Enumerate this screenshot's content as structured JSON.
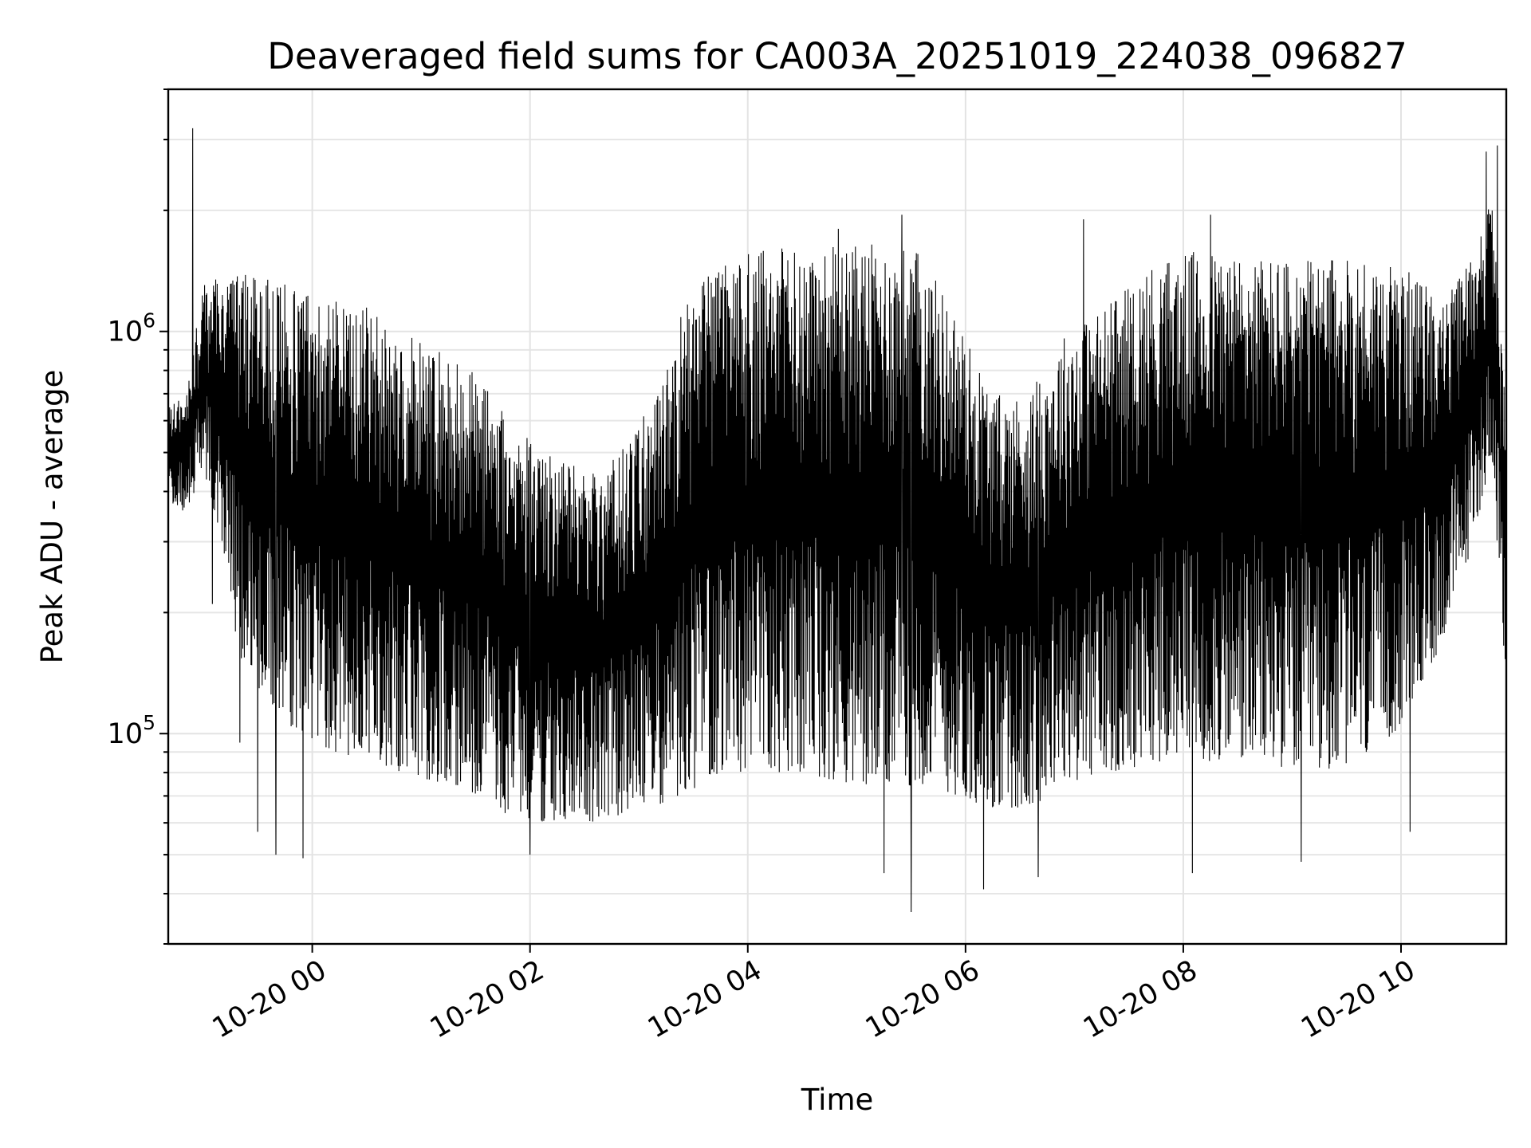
{
  "chart_data": {
    "type": "line",
    "title": "Deaveraged field sums for CA003A_20251019_224038_096827",
    "xlabel": "Time",
    "ylabel": "Peak ADU - average",
    "yscale": "log",
    "xlim": [
      "2025-10-19T22:40:38",
      "2025-10-20T10:58:00"
    ],
    "ylim": [
      30000,
      4000000
    ],
    "grid": "on",
    "x_ticks": [
      {
        "value": "2025-10-20T00:00:00",
        "label": "10-20 00"
      },
      {
        "value": "2025-10-20T02:00:00",
        "label": "10-20 02"
      },
      {
        "value": "2025-10-20T04:00:00",
        "label": "10-20 04"
      },
      {
        "value": "2025-10-20T06:00:00",
        "label": "10-20 06"
      },
      {
        "value": "2025-10-20T08:00:00",
        "label": "10-20 08"
      },
      {
        "value": "2025-10-20T10:00:00",
        "label": "10-20 10"
      }
    ],
    "y_ticks": [
      {
        "value": 100000,
        "base": "10",
        "exp": "5"
      },
      {
        "value": 1000000,
        "base": "10",
        "exp": "6"
      }
    ],
    "series": [
      {
        "color": "#000000",
        "envelope": [
          {
            "x": "2025-10-19T22:41:00",
            "low": 380000,
            "high": 650000
          },
          {
            "x": "2025-10-19T22:50:00",
            "low": 350000,
            "high": 700000
          },
          {
            "x": "2025-10-19T23:00:00",
            "low": 450000,
            "high": 1300000
          },
          {
            "x": "2025-10-19T23:10:00",
            "low": 300000,
            "high": 1400000
          },
          {
            "x": "2025-10-19T23:20:00",
            "low": 150000,
            "high": 1400000
          },
          {
            "x": "2025-10-19T23:35:00",
            "low": 120000,
            "high": 1350000
          },
          {
            "x": "2025-10-19T23:50:00",
            "low": 100000,
            "high": 1300000
          },
          {
            "x": "2025-10-20T00:10:00",
            "low": 90000,
            "high": 1250000
          },
          {
            "x": "2025-10-20T00:30:00",
            "low": 85000,
            "high": 1150000
          },
          {
            "x": "2025-10-20T00:50:00",
            "low": 80000,
            "high": 1000000
          },
          {
            "x": "2025-10-20T01:10:00",
            "low": 75000,
            "high": 900000
          },
          {
            "x": "2025-10-20T01:30:00",
            "low": 70000,
            "high": 800000
          },
          {
            "x": "2025-10-20T01:50:00",
            "low": 62000,
            "high": 600000
          },
          {
            "x": "2025-10-20T02:10:00",
            "low": 60000,
            "high": 500000
          },
          {
            "x": "2025-10-20T02:30:00",
            "low": 60000,
            "high": 450000
          },
          {
            "x": "2025-10-20T02:50:00",
            "low": 62000,
            "high": 500000
          },
          {
            "x": "2025-10-20T03:10:00",
            "low": 65000,
            "high": 700000
          },
          {
            "x": "2025-10-20T03:25:00",
            "low": 70000,
            "high": 1200000
          },
          {
            "x": "2025-10-20T03:45:00",
            "low": 80000,
            "high": 1500000
          },
          {
            "x": "2025-10-20T04:10:00",
            "low": 80000,
            "high": 1600000
          },
          {
            "x": "2025-10-20T04:40:00",
            "low": 78000,
            "high": 1650000
          },
          {
            "x": "2025-10-20T05:10:00",
            "low": 72000,
            "high": 1650000
          },
          {
            "x": "2025-10-20T05:35:00",
            "low": 75000,
            "high": 1600000
          },
          {
            "x": "2025-10-20T05:55:00",
            "low": 70000,
            "high": 1100000
          },
          {
            "x": "2025-10-20T06:15:00",
            "low": 65000,
            "high": 700000
          },
          {
            "x": "2025-10-20T06:35:00",
            "low": 65000,
            "high": 700000
          },
          {
            "x": "2025-10-20T06:55:00",
            "low": 75000,
            "high": 1000000
          },
          {
            "x": "2025-10-20T07:20:00",
            "low": 80000,
            "high": 1200000
          },
          {
            "x": "2025-10-20T07:45:00",
            "low": 85000,
            "high": 1500000
          },
          {
            "x": "2025-10-20T08:10:00",
            "low": 85000,
            "high": 1600000
          },
          {
            "x": "2025-10-20T08:40:00",
            "low": 85000,
            "high": 1550000
          },
          {
            "x": "2025-10-20T09:10:00",
            "low": 80000,
            "high": 1500000
          },
          {
            "x": "2025-10-20T09:40:00",
            "low": 85000,
            "high": 1550000
          },
          {
            "x": "2025-10-20T10:05:00",
            "low": 110000,
            "high": 1400000
          },
          {
            "x": "2025-10-20T10:25:00",
            "low": 180000,
            "high": 1200000
          },
          {
            "x": "2025-10-20T10:40:00",
            "low": 300000,
            "high": 1600000
          },
          {
            "x": "2025-10-20T10:50:00",
            "low": 500000,
            "high": 2200000
          },
          {
            "x": "2025-10-20T10:58:00",
            "low": 120000,
            "high": 600000
          }
        ],
        "spikes": [
          {
            "x": "2025-10-19T22:54:00",
            "y": 3200000
          },
          {
            "x": "2025-10-19T23:05:00",
            "y": 210000
          },
          {
            "x": "2025-10-19T23:20:00",
            "y": 95000
          },
          {
            "x": "2025-10-19T23:30:00",
            "y": 57000
          },
          {
            "x": "2025-10-19T23:40:00",
            "y": 50000
          },
          {
            "x": "2025-10-19T23:55:00",
            "y": 49000
          },
          {
            "x": "2025-10-20T02:00:00",
            "y": 50000
          },
          {
            "x": "2025-10-20T05:15:00",
            "y": 45000
          },
          {
            "x": "2025-10-20T05:30:00",
            "y": 36000
          },
          {
            "x": "2025-10-20T06:10:00",
            "y": 41000
          },
          {
            "x": "2025-10-20T06:40:00",
            "y": 44000
          },
          {
            "x": "2025-10-20T08:05:00",
            "y": 45000
          },
          {
            "x": "2025-10-20T09:05:00",
            "y": 48000
          },
          {
            "x": "2025-10-20T10:05:00",
            "y": 57000
          },
          {
            "x": "2025-10-20T04:50:00",
            "y": 1800000
          },
          {
            "x": "2025-10-20T05:25:00",
            "y": 1950000
          },
          {
            "x": "2025-10-20T07:05:00",
            "y": 1900000
          },
          {
            "x": "2025-10-20T08:15:00",
            "y": 1950000
          },
          {
            "x": "2025-10-20T10:47:00",
            "y": 2800000
          },
          {
            "x": "2025-10-20T10:53:00",
            "y": 2900000
          }
        ]
      }
    ]
  }
}
